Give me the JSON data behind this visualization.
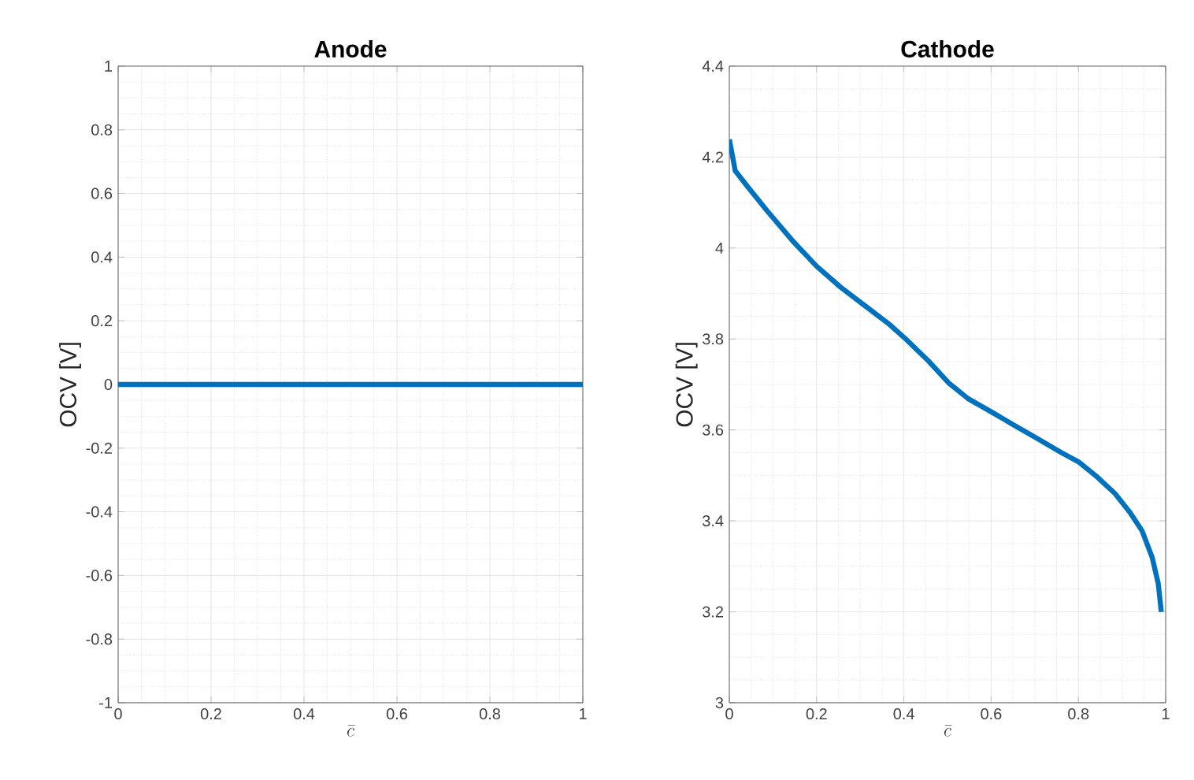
{
  "chart_data": [
    {
      "type": "line",
      "title": "Anode",
      "xlabel": "\\bar{c}",
      "ylabel": "OCV [V]",
      "xlim": [
        0,
        1
      ],
      "ylim": [
        -1,
        1
      ],
      "xticks": [
        0,
        0.2,
        0.4,
        0.6,
        0.8,
        1
      ],
      "yticks": [
        -1,
        -0.8,
        -0.6,
        -0.4,
        -0.2,
        0,
        0.2,
        0.4,
        0.6,
        0.8,
        1
      ],
      "grid": true,
      "x": [
        0,
        0.25,
        0.5,
        0.75,
        1
      ],
      "series": [
        {
          "color": "#0072bd",
          "values": [
            0,
            0,
            0,
            0,
            0
          ]
        }
      ]
    },
    {
      "type": "line",
      "title": "Cathode",
      "xlabel": "\\bar{c}",
      "ylabel": "OCV [V]",
      "xlim": [
        0,
        1
      ],
      "ylim": [
        3,
        4.4
      ],
      "xticks": [
        0,
        0.2,
        0.4,
        0.6,
        0.8,
        1
      ],
      "yticks": [
        3,
        3.2,
        3.4,
        3.6,
        3.8,
        4,
        4.2,
        4.4
      ],
      "grid": true,
      "x": [
        0,
        0.0135,
        0.042,
        0.0865,
        0.143,
        0.2,
        0.255,
        0.311,
        0.367,
        0.401,
        0.457,
        0.502,
        0.547,
        0.6,
        0.648,
        0.704,
        0.761,
        0.8,
        0.839,
        0.884,
        0.918,
        0.946,
        0.969,
        0.983,
        0.99
      ],
      "series": [
        {
          "color": "#0072bd",
          "values": [
            4.239,
            4.17,
            4.135,
            4.082,
            4.018,
            3.96,
            3.914,
            3.873,
            3.832,
            3.803,
            3.751,
            3.704,
            3.669,
            3.64,
            3.613,
            3.582,
            3.55,
            3.53,
            3.5,
            3.46,
            3.419,
            3.378,
            3.32,
            3.262,
            3.2
          ]
        }
      ]
    }
  ]
}
